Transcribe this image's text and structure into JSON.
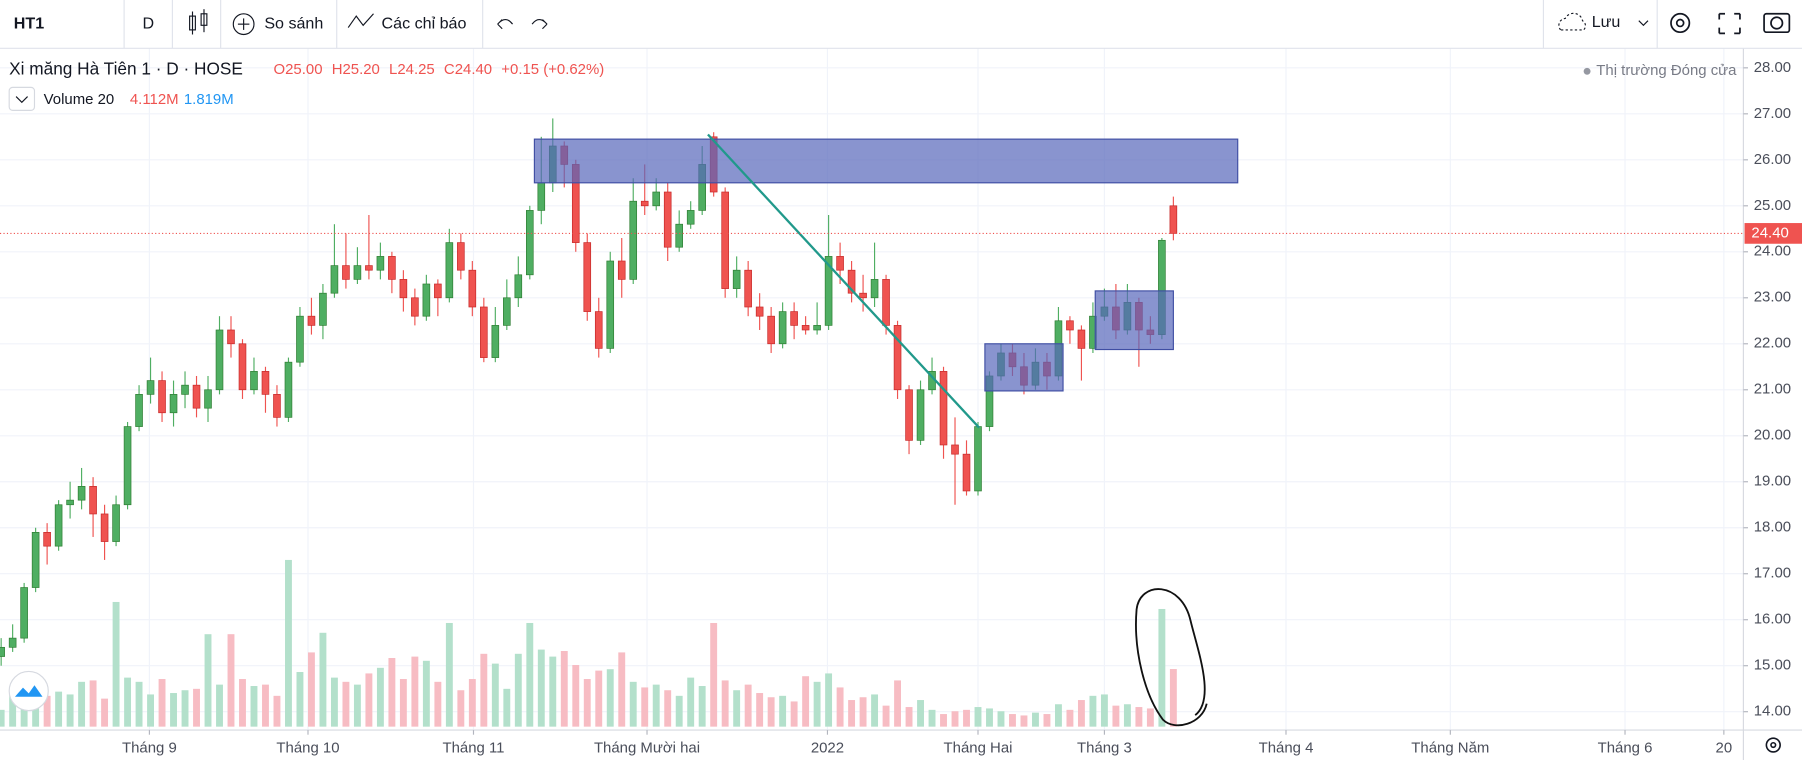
{
  "toolbar": {
    "symbol": "HT1",
    "interval": "D",
    "compare": "So sánh",
    "indicators": "Các chỉ báo",
    "save": "Lưu"
  },
  "chart_data": {
    "type": "candlestick",
    "title": "Xi măng Hà Tiên 1 · D · HOSE",
    "ohlc_legend": [
      "O25.00",
      "H25.20",
      "L24.25",
      "C24.40",
      "+0.15 (+0.62%)"
    ],
    "market_status": "Thị trường Đóng cửa",
    "volume_legend": {
      "name": "Volume 20",
      "values": [
        "4.112M",
        "1.819M"
      ]
    },
    "open": [
      15.2,
      15.4,
      15.6,
      16.7,
      17.9,
      17.6,
      18.5,
      18.6,
      18.9,
      18.3,
      17.7,
      18.5,
      20.2,
      20.9,
      21.2,
      20.5,
      20.9,
      21.1,
      20.6,
      21.0,
      22.3,
      22.0,
      21.0,
      21.4,
      20.9,
      20.4,
      21.6,
      22.6,
      22.4,
      23.1,
      23.7,
      23.4,
      23.7,
      23.6,
      23.9,
      23.4,
      23.0,
      22.6,
      23.3,
      23.0,
      24.2,
      23.6,
      22.8,
      21.7,
      22.4,
      23.0,
      23.5,
      24.9,
      25.5,
      26.3,
      25.9,
      24.2,
      22.7,
      21.9,
      23.8,
      23.4,
      25.1,
      25.0,
      25.3,
      24.1,
      24.6,
      24.9,
      26.5,
      25.3,
      23.2,
      23.6,
      22.8,
      22.6,
      22.0,
      22.7,
      22.4,
      22.3,
      22.4,
      23.9,
      23.6,
      23.1,
      23.0,
      23.4,
      22.4,
      21.0,
      19.9,
      21.0,
      21.4,
      19.8,
      19.6,
      18.8,
      20.2,
      21.3,
      21.8,
      21.5,
      21.1,
      21.6,
      21.3,
      22.5,
      22.3,
      21.9,
      22.6,
      22.8,
      22.3,
      22.9,
      22.3,
      22.2,
      25.0
    ],
    "high": [
      15.6,
      15.9,
      16.8,
      18.0,
      18.1,
      18.6,
      19.0,
      19.3,
      19.1,
      18.5,
      18.7,
      20.3,
      21.1,
      21.7,
      21.4,
      21.2,
      21.4,
      21.3,
      21.3,
      22.6,
      22.6,
      22.1,
      21.7,
      21.5,
      21.1,
      21.7,
      22.8,
      23.0,
      23.3,
      24.6,
      24.4,
      24.1,
      24.8,
      24.2,
      24.0,
      23.6,
      23.2,
      23.5,
      23.4,
      24.5,
      24.4,
      23.8,
      23.0,
      22.8,
      23.4,
      23.9,
      25.0,
      26.5,
      26.9,
      26.4,
      26.0,
      24.4,
      23.0,
      24.0,
      24.3,
      25.6,
      25.9,
      25.6,
      25.5,
      24.9,
      25.1,
      26.3,
      26.6,
      25.4,
      23.9,
      23.8,
      23.1,
      22.8,
      22.9,
      22.9,
      22.6,
      22.9,
      24.8,
      24.2,
      23.8,
      23.5,
      24.2,
      23.5,
      22.5,
      21.1,
      21.2,
      21.7,
      21.5,
      20.4,
      19.9,
      20.3,
      21.4,
      22.0,
      22.0,
      21.8,
      21.9,
      21.8,
      22.8,
      22.6,
      22.4,
      22.9,
      23.2,
      23.3,
      23.3,
      23.0,
      22.6,
      24.3,
      25.2
    ],
    "low": [
      15.0,
      15.3,
      15.5,
      16.6,
      17.2,
      17.5,
      18.2,
      18.4,
      17.8,
      17.3,
      17.6,
      18.4,
      20.1,
      20.7,
      20.3,
      20.2,
      20.6,
      20.4,
      20.3,
      20.9,
      21.7,
      20.8,
      20.9,
      20.5,
      20.2,
      20.3,
      21.5,
      22.2,
      22.1,
      23.0,
      23.2,
      23.3,
      23.4,
      23.4,
      23.1,
      22.7,
      22.4,
      22.5,
      22.6,
      22.9,
      23.4,
      22.6,
      21.6,
      21.6,
      22.3,
      22.8,
      23.4,
      24.6,
      25.3,
      25.4,
      24.0,
      22.5,
      21.7,
      21.8,
      23.0,
      23.3,
      24.8,
      24.9,
      23.8,
      24.0,
      24.5,
      24.8,
      25.2,
      23.0,
      23.0,
      22.6,
      22.3,
      21.8,
      21.9,
      22.1,
      22.2,
      22.2,
      22.3,
      23.3,
      22.9,
      22.7,
      22.8,
      22.2,
      20.8,
      19.6,
      19.8,
      20.9,
      19.5,
      18.5,
      18.7,
      18.7,
      20.1,
      21.2,
      21.3,
      20.9,
      21.0,
      21.0,
      21.2,
      22.0,
      21.2,
      21.8,
      22.5,
      22.1,
      22.2,
      21.5,
      22.0,
      22.1,
      24.25
    ],
    "close": [
      15.4,
      15.6,
      16.7,
      17.9,
      17.6,
      18.5,
      18.6,
      18.9,
      18.3,
      17.7,
      18.5,
      20.2,
      20.9,
      21.2,
      20.5,
      20.9,
      21.1,
      20.6,
      21.0,
      22.3,
      22.0,
      21.0,
      21.4,
      20.9,
      20.4,
      21.6,
      22.6,
      22.4,
      23.1,
      23.7,
      23.4,
      23.7,
      23.6,
      23.9,
      23.4,
      23.0,
      22.6,
      23.3,
      23.0,
      24.2,
      23.6,
      22.8,
      21.7,
      22.4,
      23.0,
      23.5,
      24.9,
      25.5,
      26.3,
      25.9,
      24.2,
      22.7,
      21.9,
      23.8,
      23.4,
      25.1,
      25.0,
      25.3,
      24.1,
      24.6,
      24.9,
      25.9,
      25.3,
      23.2,
      23.6,
      22.8,
      22.6,
      22.0,
      22.7,
      22.4,
      22.3,
      22.4,
      23.9,
      23.6,
      23.1,
      23.0,
      23.4,
      22.4,
      21.0,
      19.9,
      21.0,
      21.4,
      19.8,
      19.6,
      18.8,
      20.2,
      21.3,
      21.8,
      21.5,
      21.1,
      21.6,
      21.3,
      22.5,
      22.3,
      21.9,
      22.6,
      22.8,
      22.3,
      22.9,
      22.3,
      22.2,
      24.25,
      24.4
    ],
    "volume": [
      1.2,
      2.6,
      1.5,
      3.0,
      2.2,
      2.5,
      2.3,
      3.2,
      3.3,
      2.0,
      8.9,
      3.5,
      3.2,
      2.3,
      3.4,
      2.4,
      2.6,
      2.7,
      6.6,
      3.0,
      6.6,
      3.4,
      2.9,
      3.0,
      2.2,
      11.9,
      3.9,
      5.3,
      6.7,
      3.5,
      3.2,
      3.0,
      3.8,
      4.2,
      4.9,
      3.4,
      5.0,
      4.7,
      3.2,
      7.4,
      2.6,
      3.4,
      5.2,
      4.5,
      2.7,
      5.2,
      7.4,
      5.5,
      5.0,
      5.4,
      4.4,
      3.4,
      4.0,
      4.1,
      5.3,
      3.2,
      2.8,
      3.0,
      2.6,
      2.2,
      3.5,
      2.9,
      7.4,
      3.3,
      2.6,
      3.0,
      2.4,
      2.1,
      2.2,
      1.8,
      3.6,
      3.2,
      3.8,
      2.8,
      1.9,
      2.1,
      2.3,
      1.5,
      3.3,
      1.4,
      1.9,
      1.2,
      0.9,
      1.1,
      1.2,
      1.4,
      1.3,
      1.1,
      0.9,
      0.8,
      1.0,
      0.9,
      1.6,
      1.2,
      1.9,
      2.2,
      2.3,
      1.5,
      1.6,
      1.4,
      1.3,
      8.4,
      4.112
    ],
    "up_color": "#4fae62",
    "down_color": "#ef5350",
    "volume_up_color": "#b3e0cb",
    "volume_down_color": "#f7bcc3",
    "ylim": [
      13.6,
      28.425
    ],
    "yticks": [
      {
        "value": 14,
        "label": "14.00"
      },
      {
        "value": 15,
        "label": "15.00"
      },
      {
        "value": 16,
        "label": "16.00"
      },
      {
        "value": 17,
        "label": "17.00"
      },
      {
        "value": 18,
        "label": "18.00"
      },
      {
        "value": 19,
        "label": "19.00"
      },
      {
        "value": 20,
        "label": "20.00"
      },
      {
        "value": 21,
        "label": "21.00"
      },
      {
        "value": 22,
        "label": "22.00"
      },
      {
        "value": 23,
        "label": "23.00"
      },
      {
        "value": 24,
        "label": "24.00"
      },
      {
        "value": 25,
        "label": "25.00"
      },
      {
        "value": 26,
        "label": "26.00"
      },
      {
        "value": 27,
        "label": "27.00"
      },
      {
        "value": 28,
        "label": "28.00"
      }
    ],
    "xlim": [
      -0.1,
      151.6
    ],
    "xticks": [
      {
        "value": 12.9,
        "label": "Tháng 9"
      },
      {
        "value": 26.7,
        "label": "Tháng 10"
      },
      {
        "value": 41.1,
        "label": "Tháng 11"
      },
      {
        "value": 56.2,
        "label": "Tháng Mười hai"
      },
      {
        "value": 71.9,
        "label": "2022"
      },
      {
        "value": 85.0,
        "label": "Tháng Hai"
      },
      {
        "value": 96.0,
        "label": "Tháng 3"
      },
      {
        "value": 111.8,
        "label": "Tháng 4"
      },
      {
        "value": 126.1,
        "label": "Tháng Năm"
      },
      {
        "value": 141.3,
        "label": "Tháng 6"
      },
      {
        "value": 149.9,
        "label": "20"
      }
    ],
    "last_price": {
      "value": 24.4,
      "label": "24.40"
    },
    "grid": true
  }
}
